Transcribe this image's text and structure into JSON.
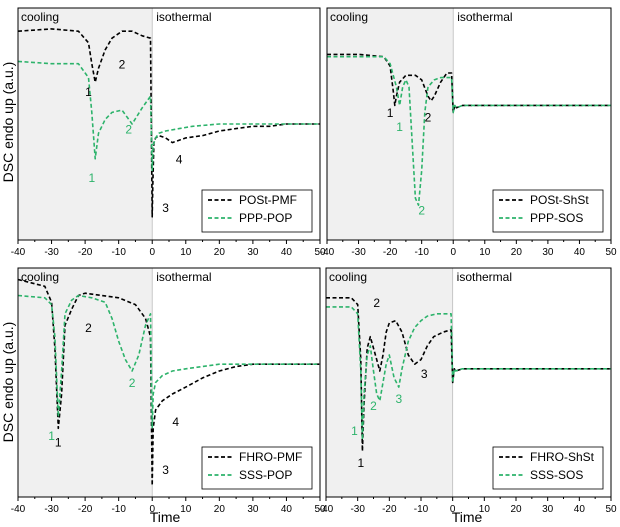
{
  "figure": {
    "ylabel": "DSC endo up (a.u.)",
    "xlabel": "Time"
  },
  "colors": {
    "black_series": "#000000",
    "green_series": "#2db36b",
    "cooling_shade": "#f0f0f0"
  },
  "chart_data": [
    {
      "type": "line",
      "panel": "top-left",
      "xlim": [
        -40,
        50
      ],
      "xticks": [
        -40,
        -30,
        -20,
        -10,
        0,
        10,
        20,
        30,
        40,
        50
      ],
      "region_labels": {
        "left": "cooling",
        "right": "isothermal"
      },
      "cooling_range": [
        -40,
        0
      ],
      "ylim": [
        0,
        1
      ],
      "y_ticks_labeled": false,
      "legend_position": "bottom-right",
      "series": [
        {
          "name": "POSt-PMF",
          "color": "#000000",
          "dash": "dashed",
          "x": [
            -40,
            -30,
            -22,
            -19,
            -18,
            -17,
            -16,
            -14,
            -12,
            -9,
            -6,
            -3,
            -0.5,
            0,
            0.2,
            0.5,
            1,
            2,
            4,
            6,
            10,
            15,
            20,
            25,
            30,
            35,
            40,
            45,
            50
          ],
          "y": [
            0.9,
            0.91,
            0.9,
            0.85,
            0.76,
            0.68,
            0.74,
            0.82,
            0.87,
            0.9,
            0.9,
            0.88,
            0.87,
            0.1,
            0.25,
            0.42,
            0.44,
            0.45,
            0.44,
            0.42,
            0.44,
            0.45,
            0.47,
            0.48,
            0.49,
            0.49,
            0.5,
            0.5,
            0.5
          ]
        },
        {
          "name": "PPP-POP",
          "color": "#2db36b",
          "dash": "dashed",
          "x": [
            -40,
            -30,
            -22,
            -19,
            -18,
            -17,
            -16,
            -14,
            -12,
            -9,
            -6,
            -3,
            -0.5,
            0,
            0.3,
            1,
            2,
            4,
            8,
            12,
            20,
            30,
            40,
            50
          ],
          "y": [
            0.77,
            0.76,
            0.76,
            0.7,
            0.55,
            0.35,
            0.46,
            0.52,
            0.55,
            0.56,
            0.5,
            0.57,
            0.62,
            0.3,
            0.41,
            0.44,
            0.46,
            0.47,
            0.48,
            0.49,
            0.5,
            0.5,
            0.5,
            0.5
          ]
        }
      ],
      "annotations": [
        {
          "text": "1",
          "color": "#000000",
          "x": -19,
          "y": 0.62
        },
        {
          "text": "2",
          "color": "#000000",
          "x": -9,
          "y": 0.74
        },
        {
          "text": "1",
          "color": "#2db36b",
          "x": -18,
          "y": 0.25
        },
        {
          "text": "2",
          "color": "#2db36b",
          "x": -7,
          "y": 0.46
        },
        {
          "text": "4",
          "color": "#000000",
          "x": 8,
          "y": 0.33
        },
        {
          "text": "3",
          "color": "#000000",
          "x": 4,
          "y": 0.12
        }
      ]
    },
    {
      "type": "line",
      "panel": "top-right",
      "xlim": [
        -40,
        50
      ],
      "xticks": [
        -40,
        -30,
        -20,
        -10,
        0,
        10,
        20,
        30,
        40,
        50
      ],
      "region_labels": {
        "left": "cooling",
        "right": "isothermal"
      },
      "cooling_range": [
        -40,
        0
      ],
      "ylim": [
        0,
        1
      ],
      "y_ticks_labeled": false,
      "legend_position": "bottom-right",
      "series": [
        {
          "name": "POSt-ShSt",
          "color": "#000000",
          "dash": "dashed",
          "x": [
            -40,
            -30,
            -22,
            -20,
            -19,
            -18.5,
            -18,
            -17,
            -15,
            -12,
            -10,
            -8,
            -7,
            -6,
            -4,
            -2,
            -0.5,
            0,
            0.5,
            1,
            3,
            6,
            10,
            20,
            30,
            40,
            50
          ],
          "y": [
            0.8,
            0.8,
            0.79,
            0.75,
            0.64,
            0.58,
            0.62,
            0.68,
            0.71,
            0.71,
            0.69,
            0.62,
            0.6,
            0.62,
            0.68,
            0.72,
            0.72,
            0.55,
            0.58,
            0.57,
            0.58,
            0.58,
            0.58,
            0.58,
            0.58,
            0.58,
            0.58
          ]
        },
        {
          "name": "PPP-SOS",
          "color": "#2db36b",
          "dash": "dashed",
          "x": [
            -40,
            -30,
            -22,
            -20,
            -18,
            -17,
            -16,
            -15,
            -14,
            -13,
            -12,
            -11,
            -10,
            -9,
            -8,
            -6,
            -4,
            -2,
            -0.5,
            0,
            0.5,
            1,
            3,
            6,
            10,
            20,
            30,
            40,
            50
          ],
          "y": [
            0.79,
            0.79,
            0.79,
            0.76,
            0.66,
            0.58,
            0.66,
            0.69,
            0.66,
            0.42,
            0.18,
            0.15,
            0.3,
            0.55,
            0.66,
            0.69,
            0.7,
            0.7,
            0.7,
            0.55,
            0.58,
            0.57,
            0.58,
            0.58,
            0.58,
            0.58,
            0.58,
            0.58,
            0.58
          ]
        }
      ],
      "annotations": [
        {
          "text": "1",
          "color": "#000000",
          "x": -20,
          "y": 0.53
        },
        {
          "text": "2",
          "color": "#000000",
          "x": -8,
          "y": 0.51
        },
        {
          "text": "1",
          "color": "#2db36b",
          "x": -17,
          "y": 0.47
        },
        {
          "text": "2",
          "color": "#2db36b",
          "x": -10,
          "y": 0.11
        }
      ]
    },
    {
      "type": "line",
      "panel": "bottom-left",
      "xlim": [
        -40,
        50
      ],
      "xticks": [
        -40,
        -30,
        -20,
        -10,
        0,
        10,
        20,
        30,
        40,
        50
      ],
      "region_labels": {
        "left": "cooling",
        "right": "isothermal"
      },
      "cooling_range": [
        -40,
        0
      ],
      "ylim": [
        0,
        1
      ],
      "y_ticks_labeled": false,
      "legend_position": "bottom-right",
      "series": [
        {
          "name": "FHRO-PMF",
          "color": "#000000",
          "dash": "dashed",
          "x": [
            -40,
            -32,
            -30,
            -29,
            -28,
            -27,
            -26,
            -24,
            -22,
            -20,
            -15,
            -10,
            -5,
            -2,
            -0.5,
            0,
            0.3,
            1,
            3,
            6,
            10,
            15,
            20,
            25,
            30,
            35,
            40,
            50
          ],
          "y": [
            0.95,
            0.92,
            0.85,
            0.65,
            0.3,
            0.45,
            0.75,
            0.82,
            0.88,
            0.89,
            0.88,
            0.87,
            0.84,
            0.78,
            0.7,
            0.05,
            0.3,
            0.38,
            0.42,
            0.45,
            0.48,
            0.52,
            0.55,
            0.57,
            0.58,
            0.58,
            0.58,
            0.58
          ]
        },
        {
          "name": "SSS-POP",
          "color": "#2db36b",
          "dash": "dashed",
          "x": [
            -40,
            -32,
            -30,
            -29,
            -28,
            -27,
            -26,
            -24,
            -22,
            -18,
            -14,
            -12,
            -10,
            -8,
            -6,
            -4,
            -2,
            -0.5,
            0,
            0.3,
            1,
            3,
            6,
            10,
            20,
            30,
            40,
            50
          ],
          "y": [
            0.88,
            0.87,
            0.84,
            0.7,
            0.35,
            0.55,
            0.8,
            0.86,
            0.88,
            0.87,
            0.85,
            0.78,
            0.68,
            0.6,
            0.55,
            0.62,
            0.75,
            0.8,
            0.3,
            0.45,
            0.5,
            0.53,
            0.55,
            0.56,
            0.58,
            0.58,
            0.58,
            0.58
          ]
        }
      ],
      "annotations": [
        {
          "text": "1",
          "color": "#2db36b",
          "x": -30,
          "y": 0.25
        },
        {
          "text": "1",
          "color": "#000000",
          "x": -28,
          "y": 0.22
        },
        {
          "text": "2",
          "color": "#000000",
          "x": -19,
          "y": 0.72
        },
        {
          "text": "2",
          "color": "#2db36b",
          "x": -6,
          "y": 0.48
        },
        {
          "text": "4",
          "color": "#000000",
          "x": 7,
          "y": 0.31
        },
        {
          "text": "3",
          "color": "#000000",
          "x": 4,
          "y": 0.1
        }
      ]
    },
    {
      "type": "line",
      "panel": "bottom-right",
      "xlim": [
        -40,
        50
      ],
      "xticks": [
        -40,
        -30,
        -20,
        -10,
        0,
        10,
        20,
        30,
        40,
        50
      ],
      "region_labels": {
        "left": "cooling",
        "right": "isothermal"
      },
      "cooling_range": [
        -40,
        0
      ],
      "ylim": [
        0,
        1
      ],
      "y_ticks_labeled": false,
      "legend_position": "bottom-right",
      "series": [
        {
          "name": "FHRO-ShSt",
          "color": "#000000",
          "dash": "dashed",
          "x": [
            -40,
            -32,
            -30,
            -29,
            -28.5,
            -28,
            -27,
            -26,
            -25,
            -24,
            -23,
            -22,
            -21,
            -20,
            -18,
            -16,
            -14,
            -12,
            -10,
            -8,
            -6,
            -3,
            -0.5,
            0,
            0.5,
            1,
            3,
            6,
            10,
            20,
            30,
            40,
            50
          ],
          "y": [
            0.87,
            0.87,
            0.84,
            0.6,
            0.2,
            0.4,
            0.65,
            0.7,
            0.65,
            0.6,
            0.55,
            0.62,
            0.72,
            0.76,
            0.77,
            0.72,
            0.62,
            0.58,
            0.6,
            0.66,
            0.7,
            0.72,
            0.73,
            0.5,
            0.56,
            0.55,
            0.56,
            0.56,
            0.56,
            0.56,
            0.56,
            0.56,
            0.56
          ]
        },
        {
          "name": "SSS-SOS",
          "color": "#2db36b",
          "dash": "dashed",
          "x": [
            -40,
            -32,
            -30,
            -29,
            -28.5,
            -28,
            -27,
            -26,
            -25,
            -24,
            -23,
            -22,
            -21,
            -20,
            -18.5,
            -17,
            -16,
            -14,
            -12,
            -10,
            -8,
            -5,
            -2,
            -0.5,
            0,
            0.5,
            1,
            3,
            6,
            10,
            20,
            30,
            40,
            50
          ],
          "y": [
            0.83,
            0.83,
            0.8,
            0.55,
            0.25,
            0.45,
            0.62,
            0.66,
            0.55,
            0.45,
            0.42,
            0.5,
            0.58,
            0.62,
            0.52,
            0.48,
            0.56,
            0.68,
            0.74,
            0.77,
            0.79,
            0.8,
            0.8,
            0.8,
            0.5,
            0.56,
            0.55,
            0.56,
            0.56,
            0.56,
            0.56,
            0.56,
            0.56,
            0.56
          ]
        }
      ],
      "annotations": [
        {
          "text": "1",
          "color": "#2db36b",
          "x": -31,
          "y": 0.27
        },
        {
          "text": "1",
          "color": "#000000",
          "x": -29,
          "y": 0.13
        },
        {
          "text": "2",
          "color": "#000000",
          "x": -24,
          "y": 0.83
        },
        {
          "text": "2",
          "color": "#2db36b",
          "x": -25,
          "y": 0.38
        },
        {
          "text": "3",
          "color": "#2db36b",
          "x": -17,
          "y": 0.41
        },
        {
          "text": "3",
          "color": "#000000",
          "x": -9,
          "y": 0.52
        }
      ]
    }
  ]
}
